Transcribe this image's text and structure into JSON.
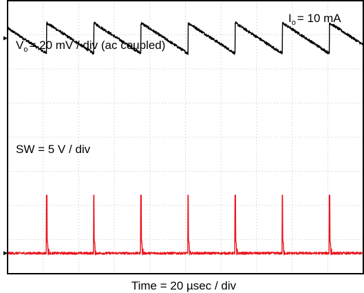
{
  "chart_data": {
    "type": "line",
    "title": "",
    "annotations": {
      "load_current": {
        "symbol": "I",
        "subscript": "o",
        "text": "= 10 mA"
      },
      "vout": {
        "symbol": "V",
        "subscript": "o",
        "text": "= 20 mV / div (ac coupled)"
      },
      "sw": {
        "text": "SW = 5 V / div"
      }
    },
    "xlabel": "Time = 20 µsec / div",
    "x_divisions": 10,
    "y_divisions": 8,
    "x_unit": "µs",
    "xlim": [
      0,
      200
    ],
    "series": [
      {
        "role": "vout",
        "color": "#000000",
        "units": "mV (ac coupled)",
        "ground_division": 6.9,
        "waveform": "sawtooth",
        "ramp_start": 9,
        "ramp_end": -9,
        "jump_times_us": [
          22,
          48.5,
          75,
          101.5,
          128,
          154.5,
          181
        ]
      },
      {
        "role": "sw",
        "color": "#e8141c",
        "units": "V",
        "ground_division": 0.6,
        "baseline": 0,
        "spike_peak": 8.5,
        "spike_times_us": [
          22,
          48.5,
          75,
          101.5,
          128,
          154.5,
          181
        ]
      }
    ]
  }
}
